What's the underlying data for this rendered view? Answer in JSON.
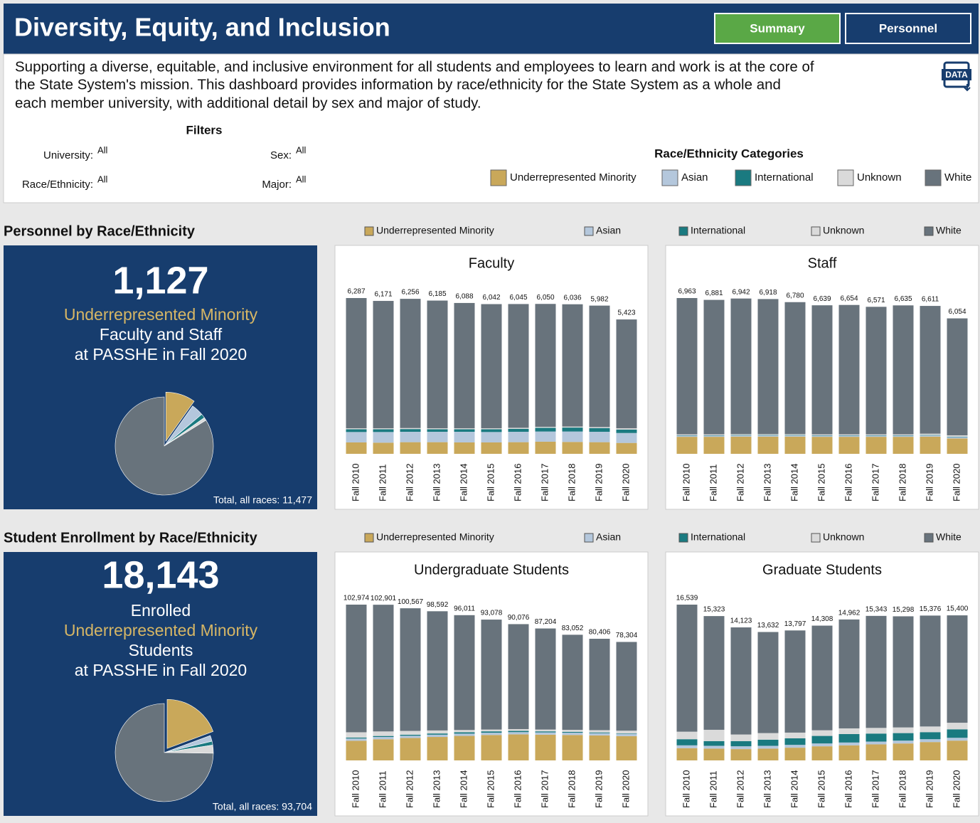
{
  "header": {
    "title": "Diversity, Equity, and Inclusion",
    "buttons": [
      "Summary",
      "Personnel"
    ],
    "data_icon": "DATA",
    "description": [
      "Supporting a diverse, equitable, and inclusive environment for all students and employees to learn and work is at the core of",
      "the State System's mission.  This dashboard provides information by race/ethnicity for the State System as a whole and",
      "each member university, with additional detail by sex and major of study."
    ],
    "filters_title": "Filters",
    "filters": [
      {
        "label": "University:",
        "value": "All"
      },
      {
        "label": "Sex:",
        "value": "All"
      },
      {
        "label": "Race/Ethnicity:",
        "value": "All"
      },
      {
        "label": "Major:",
        "value": "All"
      }
    ],
    "legend": {
      "title": "Race/Ethnicity Categories",
      "items": [
        {
          "name": "Underrepresented Minority",
          "color": "#c9a85a"
        },
        {
          "name": "Asian",
          "color": "#b4c7dc"
        },
        {
          "name": "International",
          "color": "#1a7a80"
        },
        {
          "name": "Unknown",
          "color": "#dadada"
        },
        {
          "name": "White",
          "color": "#68737c"
        }
      ]
    }
  },
  "chart_data": [
    {
      "type": "pie",
      "section_title": "Personnel by Race/Ethnicity",
      "headline": "1,127",
      "lines": [
        "Underrepresented Minority",
        "Faculty and Staff",
        "at PASSHE in Fall 2020"
      ],
      "total_label": "Total, all races: 11,477",
      "categories": [
        "Underrepresented Minority",
        "Asian",
        "International",
        "Unknown",
        "White"
      ],
      "values": [
        1127,
        460,
        160,
        110,
        9620
      ],
      "colors": [
        "#c9a85a",
        "#b4c7dc",
        "#1a7a80",
        "#dadada",
        "#68737c"
      ]
    },
    {
      "type": "bar",
      "title": "Faculty",
      "categories": [
        "Fall 2010",
        "Fall 2011",
        "Fall 2012",
        "Fall 2013",
        "Fall 2014",
        "Fall 2015",
        "Fall 2016",
        "Fall 2017",
        "Fall 2018",
        "Fall 2019",
        "Fall 2020"
      ],
      "totals": [
        {
          "value": 6287,
          "label": "6,287"
        },
        {
          "value": 6171,
          "label": "6,171"
        },
        {
          "value": 6256,
          "label": "6,256"
        },
        {
          "value": 6185,
          "label": "6,185"
        },
        {
          "value": 6088,
          "label": "6,088"
        },
        {
          "value": 6042,
          "label": "6,042"
        },
        {
          "value": 6045,
          "label": "6,045"
        },
        {
          "value": 6050,
          "label": "6,050"
        },
        {
          "value": 6036,
          "label": "6,036"
        },
        {
          "value": 5982,
          "label": "5,982"
        },
        {
          "value": 5423,
          "label": "5,423"
        }
      ],
      "series": [
        {
          "name": "Underrepresented Minority",
          "color": "#c9a85a",
          "values": [
            460,
            450,
            470,
            470,
            460,
            460,
            470,
            490,
            480,
            470,
            440
          ]
        },
        {
          "name": "Asian",
          "color": "#b4c7dc",
          "values": [
            420,
            430,
            420,
            420,
            430,
            420,
            420,
            410,
            420,
            420,
            400
          ]
        },
        {
          "name": "International",
          "color": "#1a7a80",
          "values": [
            110,
            110,
            110,
            100,
            100,
            110,
            120,
            150,
            160,
            150,
            140
          ]
        },
        {
          "name": "Unknown",
          "color": "#dadada",
          "values": [
            40,
            40,
            40,
            40,
            40,
            40,
            40,
            40,
            40,
            40,
            50
          ]
        },
        {
          "name": "White",
          "color": "#68737c",
          "values": [
            5257,
            5141,
            5216,
            5155,
            5058,
            5012,
            4995,
            4960,
            4936,
            4902,
            4393
          ]
        }
      ]
    },
    {
      "type": "bar",
      "title": "Staff",
      "categories": [
        "Fall 2010",
        "Fall 2011",
        "Fall 2012",
        "Fall 2013",
        "Fall 2014",
        "Fall 2015",
        "Fall 2016",
        "Fall 2017",
        "Fall 2018",
        "Fall 2019",
        "Fall 2020"
      ],
      "totals": [
        {
          "value": 6963,
          "label": "6,963"
        },
        {
          "value": 6881,
          "label": "6,881"
        },
        {
          "value": 6942,
          "label": "6,942"
        },
        {
          "value": 6918,
          "label": "6,918"
        },
        {
          "value": 6780,
          "label": "6,780"
        },
        {
          "value": 6639,
          "label": "6,639"
        },
        {
          "value": 6654,
          "label": "6,654"
        },
        {
          "value": 6571,
          "label": "6,571"
        },
        {
          "value": 6635,
          "label": "6,635"
        },
        {
          "value": 6611,
          "label": "6,611"
        },
        {
          "value": 6054,
          "label": "6,054"
        }
      ],
      "series": [
        {
          "name": "Underrepresented Minority",
          "color": "#c9a85a",
          "values": [
            760,
            760,
            770,
            770,
            770,
            760,
            760,
            760,
            760,
            770,
            687
          ]
        },
        {
          "name": "Asian",
          "color": "#b4c7dc",
          "values": [
            50,
            50,
            50,
            50,
            50,
            50,
            50,
            50,
            50,
            50,
            60
          ]
        },
        {
          "name": "International",
          "color": "#1a7a80",
          "values": [
            20,
            20,
            20,
            20,
            20,
            20,
            20,
            20,
            20,
            20,
            20
          ]
        },
        {
          "name": "Unknown",
          "color": "#dadada",
          "values": [
            40,
            40,
            40,
            40,
            40,
            40,
            40,
            40,
            40,
            60,
            60
          ]
        },
        {
          "name": "White",
          "color": "#68737c",
          "values": [
            6093,
            6011,
            6062,
            6038,
            5900,
            5769,
            5784,
            5701,
            5765,
            5711,
            5227
          ]
        }
      ]
    },
    {
      "type": "pie",
      "section_title": "Student Enrollment by Race/Ethnicity",
      "headline": "18,143",
      "lines": [
        "Enrolled",
        "Underrepresented Minority",
        "Students",
        "at PASSHE in Fall 2020"
      ],
      "total_label": "Total, all races: 93,704",
      "categories": [
        "Underrepresented Minority",
        "Asian",
        "International",
        "Unknown",
        "White"
      ],
      "values": [
        18143,
        1800,
        1200,
        2500,
        70061
      ],
      "colors": [
        "#c9a85a",
        "#b4c7dc",
        "#1a7a80",
        "#dadada",
        "#68737c"
      ]
    },
    {
      "type": "bar",
      "title": "Undergraduate Students",
      "categories": [
        "Fall 2010",
        "Fall 2011",
        "Fall 2012",
        "Fall 2013",
        "Fall 2014",
        "Fall 2015",
        "Fall 2016",
        "Fall 2017",
        "Fall 2018",
        "Fall 2019",
        "Fall 2020"
      ],
      "totals": [
        {
          "value": 102974,
          "label": "102,974"
        },
        {
          "value": 102901,
          "label": "102,901"
        },
        {
          "value": 100567,
          "label": "100,567"
        },
        {
          "value": 98592,
          "label": "98,592"
        },
        {
          "value": 96011,
          "label": "96,011"
        },
        {
          "value": 93078,
          "label": "93,078"
        },
        {
          "value": 90076,
          "label": "90,076"
        },
        {
          "value": 87204,
          "label": "87,204"
        },
        {
          "value": 83052,
          "label": "83,052"
        },
        {
          "value": 80406,
          "label": "80,406"
        },
        {
          "value": 78304,
          "label": "78,304"
        }
      ],
      "series": [
        {
          "name": "Underrepresented Minority",
          "color": "#c9a85a",
          "values": [
            13000,
            14000,
            14800,
            15500,
            16200,
            16800,
            17200,
            17000,
            16800,
            16500,
            16043
          ]
        },
        {
          "name": "Asian",
          "color": "#b4c7dc",
          "values": [
            1500,
            1500,
            1500,
            1500,
            1500,
            1500,
            1500,
            1500,
            1500,
            1500,
            1500
          ]
        },
        {
          "name": "International",
          "color": "#1a7a80",
          "values": [
            600,
            650,
            700,
            800,
            900,
            900,
            800,
            700,
            600,
            500,
            300
          ]
        },
        {
          "name": "Unknown",
          "color": "#dadada",
          "values": [
            3500,
            3000,
            2500,
            2000,
            1500,
            1200,
            1200,
            1200,
            1300,
            1500,
            1800
          ]
        },
        {
          "name": "White",
          "color": "#68737c",
          "values": [
            84374,
            83751,
            81067,
            78792,
            75911,
            72678,
            69376,
            66804,
            62852,
            60406,
            58661
          ]
        }
      ]
    },
    {
      "type": "bar",
      "title": "Graduate Students",
      "categories": [
        "Fall 2010",
        "Fall 2011",
        "Fall 2012",
        "Fall 2013",
        "Fall 2014",
        "Fall 2015",
        "Fall 2016",
        "Fall 2017",
        "Fall 2018",
        "Fall 2019",
        "Fall 2020"
      ],
      "totals": [
        {
          "value": 16539,
          "label": "16,539"
        },
        {
          "value": 15323,
          "label": "15,323"
        },
        {
          "value": 14123,
          "label": "14,123"
        },
        {
          "value": 13632,
          "label": "13,632"
        },
        {
          "value": 13797,
          "label": "13,797"
        },
        {
          "value": 14308,
          "label": "14,308"
        },
        {
          "value": 14962,
          "label": "14,962"
        },
        {
          "value": 15343,
          "label": "15,343"
        },
        {
          "value": 15298,
          "label": "15,298"
        },
        {
          "value": 15376,
          "label": "15,376"
        },
        {
          "value": 15400,
          "label": "15,400"
        }
      ],
      "series": [
        {
          "name": "Underrepresented Minority",
          "color": "#c9a85a",
          "values": [
            1300,
            1250,
            1200,
            1250,
            1350,
            1500,
            1600,
            1700,
            1800,
            1950,
            2100
          ]
        },
        {
          "name": "Asian",
          "color": "#b4c7dc",
          "values": [
            300,
            300,
            300,
            300,
            300,
            300,
            300,
            300,
            300,
            300,
            300
          ]
        },
        {
          "name": "International",
          "color": "#1a7a80",
          "values": [
            650,
            500,
            550,
            650,
            700,
            800,
            900,
            850,
            800,
            750,
            900
          ]
        },
        {
          "name": "Unknown",
          "color": "#dadada",
          "values": [
            800,
            1200,
            700,
            700,
            600,
            600,
            600,
            600,
            600,
            600,
            700
          ]
        },
        {
          "name": "White",
          "color": "#68737c",
          "values": [
            13489,
            12073,
            11373,
            10732,
            10847,
            11108,
            11562,
            11893,
            11798,
            11776,
            11400
          ]
        }
      ]
    }
  ]
}
